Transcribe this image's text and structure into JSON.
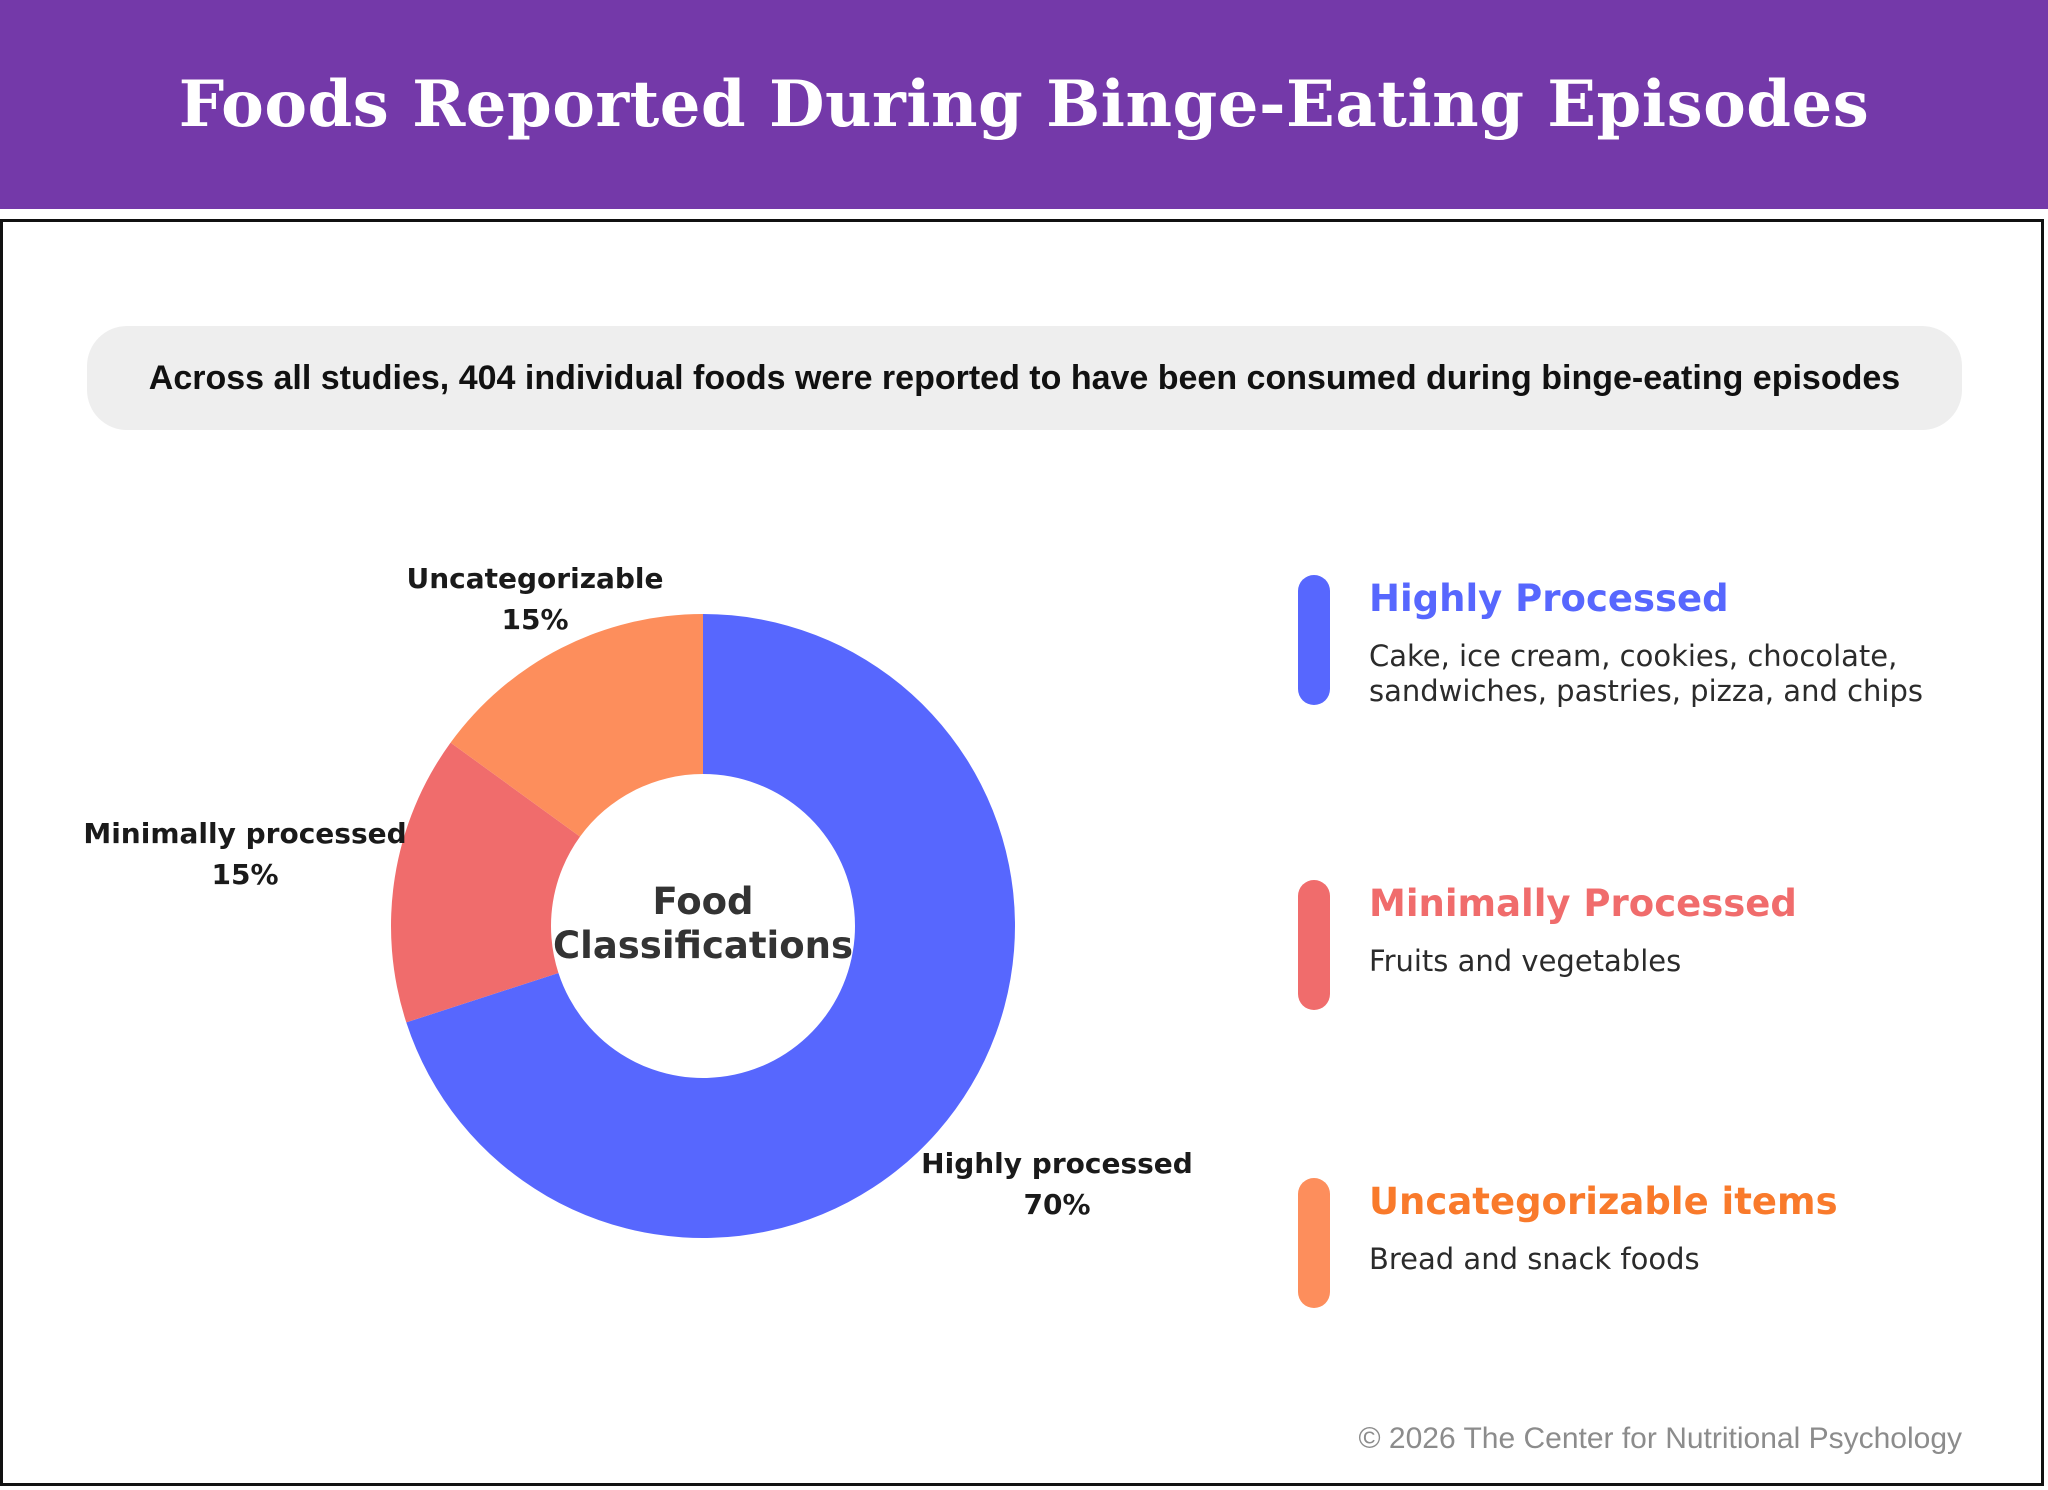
{
  "header": {
    "title": "Foods Reported During Binge-Eating Episodes"
  },
  "banner": {
    "text": "Across all studies, 404 individual foods were reported  to have been consumed during binge-eating episodes"
  },
  "chart_data": {
    "type": "pie",
    "style": "donut",
    "center_label": [
      "Food",
      "Classifications"
    ],
    "slices": [
      {
        "label": "Highly processed",
        "value": 70,
        "value_label": "70%",
        "color": "#5767fe"
      },
      {
        "label": "Minimally processed",
        "value": 15,
        "value_label": "15%",
        "color": "#f06c6c"
      },
      {
        "label": "Uncategorizable",
        "value": 15,
        "value_label": "15%",
        "color": "#fd8e5c"
      }
    ]
  },
  "legend": [
    {
      "title": "Highly Processed",
      "description": "Cake, ice cream, cookies, chocolate, sandwiches, pastries, pizza, and chips",
      "color": "#5767fe",
      "title_color": "#5767fe"
    },
    {
      "title": "Minimally Processed",
      "description": "Fruits and vegetables",
      "color": "#f06c6c",
      "title_color": "#f06c6c"
    },
    {
      "title": "Uncategorizable items",
      "description": "Bread and snack foods",
      "color": "#fd8e5c",
      "title_color": "#f97a2b"
    }
  ],
  "footer": {
    "copyright": "© 2026 The Center for Nutritional Psychology"
  }
}
